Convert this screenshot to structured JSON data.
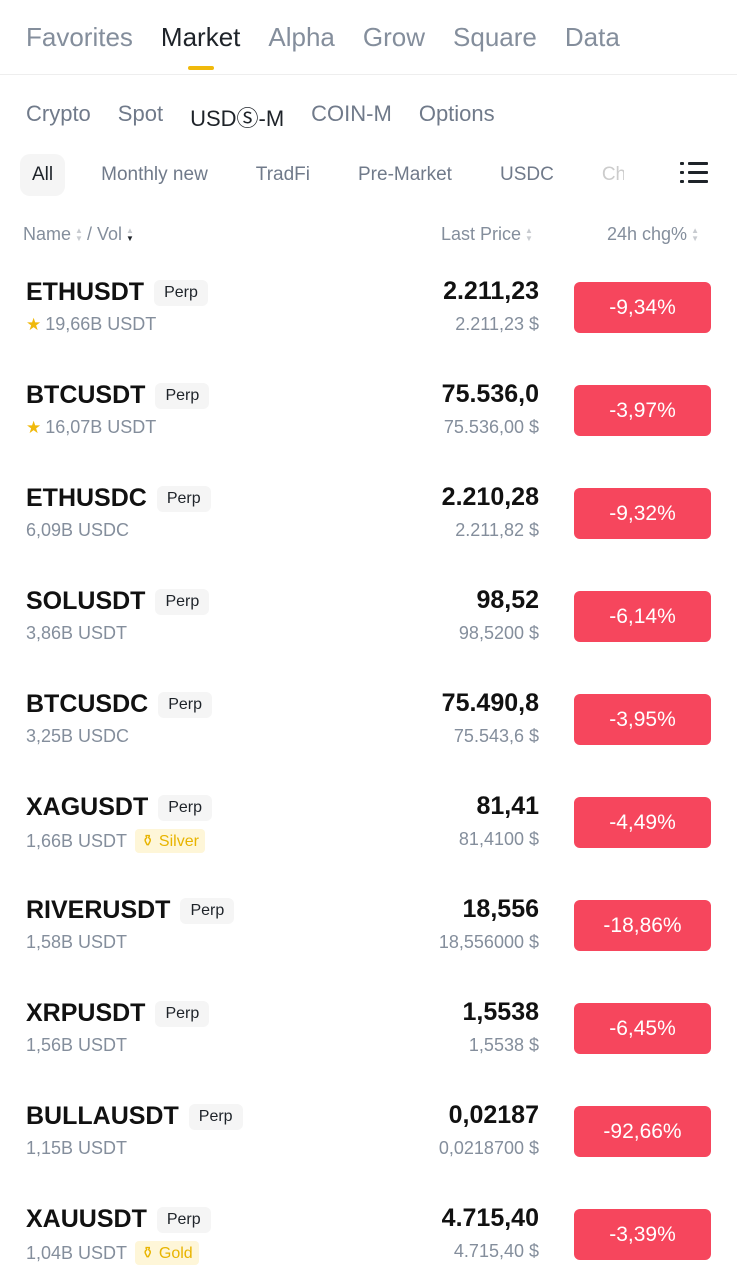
{
  "top_tabs": [
    "Favorites",
    "Market",
    "Alpha",
    "Grow",
    "Square",
    "Data"
  ],
  "sub_tabs": [
    "Crypto",
    "Spot",
    "USDⓈ-M",
    "COIN-M",
    "Options"
  ],
  "chips": [
    "All",
    "Monthly new",
    "TradFi",
    "Pre-Market",
    "USDC",
    "Chi"
  ],
  "header": {
    "name": "Name",
    "vol": "/ Vol",
    "last_price": "Last Price",
    "chg": "24h chg%"
  },
  "colors": {
    "accent": "#f0b90b",
    "negative": "#f6465d"
  },
  "rows": [
    {
      "symbol": "ETHUSDT",
      "type": "Perp",
      "vol": "19,66B USDT",
      "star": true,
      "price": "2.211,23",
      "fiat": "2.211,23 $",
      "chg": "-9,34%"
    },
    {
      "symbol": "BTCUSDT",
      "type": "Perp",
      "vol": "16,07B USDT",
      "star": true,
      "price": "75.536,0",
      "fiat": "75.536,00 $",
      "chg": "-3,97%"
    },
    {
      "symbol": "ETHUSDC",
      "type": "Perp",
      "vol": "6,09B USDC",
      "price": "2.210,28",
      "fiat": "2.211,82 $",
      "chg": "-9,32%"
    },
    {
      "symbol": "SOLUSDT",
      "type": "Perp",
      "vol": "3,86B USDT",
      "price": "98,52",
      "fiat": "98,5200 $",
      "chg": "-6,14%"
    },
    {
      "symbol": "BTCUSDC",
      "type": "Perp",
      "vol": "3,25B USDC",
      "price": "75.490,8",
      "fiat": "75.543,6 $",
      "chg": "-3,95%"
    },
    {
      "symbol": "XAGUSDT",
      "type": "Perp",
      "vol": "1,66B USDT",
      "tag": "Silver",
      "price": "81,41",
      "fiat": "81,4100 $",
      "chg": "-4,49%"
    },
    {
      "symbol": "RIVERUSDT",
      "type": "Perp",
      "vol": "1,58B USDT",
      "price": "18,556",
      "fiat": "18,556000 $",
      "chg": "-18,86%"
    },
    {
      "symbol": "XRPUSDT",
      "type": "Perp",
      "vol": "1,56B USDT",
      "price": "1,5538",
      "fiat": "1,5538 $",
      "chg": "-6,45%"
    },
    {
      "symbol": "BULLAUSDT",
      "type": "Perp",
      "vol": "1,15B USDT",
      "price": "0,02187",
      "fiat": "0,0218700 $",
      "chg": "-92,66%"
    },
    {
      "symbol": "XAUUSDT",
      "type": "Perp",
      "vol": "1,04B USDT",
      "tag": "Gold",
      "price": "4.715,40",
      "fiat": "4.715,40 $",
      "chg": "-3,39%"
    }
  ]
}
